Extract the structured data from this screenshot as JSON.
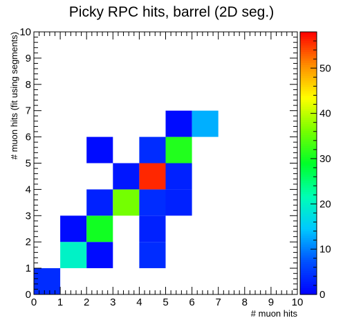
{
  "chart_data": {
    "type": "heatmap",
    "title": "Picky RPC hits, barrel (2D seg.)",
    "xlabel": "# muon hits",
    "ylabel": "# muon hits (fit using segments)",
    "xlim": [
      0,
      10
    ],
    "ylim": [
      0,
      10
    ],
    "x_ticks": [
      "0",
      "1",
      "2",
      "3",
      "4",
      "5",
      "6",
      "7",
      "8",
      "9",
      "10"
    ],
    "y_ticks": [
      "0",
      "1",
      "2",
      "3",
      "4",
      "5",
      "6",
      "7",
      "8",
      "9",
      "10"
    ],
    "z_range": [
      0,
      58
    ],
    "z_ticks": [
      "0",
      "10",
      "20",
      "30",
      "40",
      "50"
    ],
    "z_tick_values": [
      0,
      10,
      20,
      30,
      40,
      50
    ],
    "colormap": [
      "#0000ff",
      "#0050ff",
      "#00c8ff",
      "#00ffb4",
      "#00ff28",
      "#78ff00",
      "#ffff00",
      "#ff8c00",
      "#ff0000"
    ],
    "cells": [
      {
        "x": 0,
        "y": 0,
        "value": 4
      },
      {
        "x": 1,
        "y": 1,
        "value": 20
      },
      {
        "x": 1,
        "y": 2,
        "value": 1
      },
      {
        "x": 2,
        "y": 1,
        "value": 1
      },
      {
        "x": 2,
        "y": 2,
        "value": 30
      },
      {
        "x": 2,
        "y": 3,
        "value": 3
      },
      {
        "x": 2,
        "y": 5,
        "value": 1
      },
      {
        "x": 3,
        "y": 3,
        "value": 36
      },
      {
        "x": 3,
        "y": 4,
        "value": 2
      },
      {
        "x": 4,
        "y": 1,
        "value": 4
      },
      {
        "x": 4,
        "y": 2,
        "value": 3
      },
      {
        "x": 4,
        "y": 3,
        "value": 4
      },
      {
        "x": 4,
        "y": 4,
        "value": 56
      },
      {
        "x": 4,
        "y": 5,
        "value": 4
      },
      {
        "x": 5,
        "y": 3,
        "value": 3
      },
      {
        "x": 5,
        "y": 4,
        "value": 3
      },
      {
        "x": 5,
        "y": 5,
        "value": 31
      },
      {
        "x": 5,
        "y": 6,
        "value": 1
      },
      {
        "x": 6,
        "y": 6,
        "value": 13
      }
    ]
  }
}
